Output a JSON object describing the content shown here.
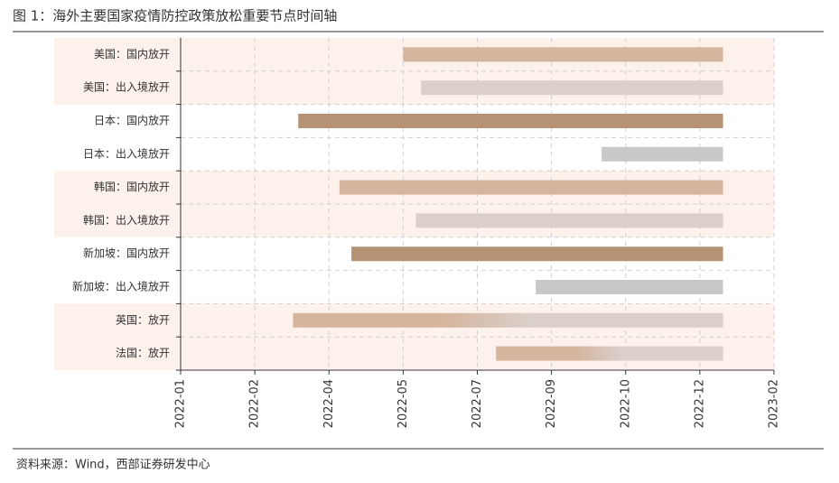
{
  "chart_data": {
    "type": "gantt",
    "title": "图 1：海外主要国家疫情防控政策放松重要节点时间轴",
    "source": "资料来源：Wind，西部证券研发中心",
    "categories": [
      "美国：国内放开",
      "美国：出入境放开",
      "日本：国内放开",
      "日本：出入境放开",
      "韩国：国内放开",
      "韩国：出入境放开",
      "新加坡：国内放开",
      "新加坡：出入境放开",
      "英国：放开",
      "法国：放开"
    ],
    "start": [
      148.5,
      160.5,
      78.5,
      281,
      106,
      157,
      114,
      237,
      75,
      210.5
    ],
    "end": [
      362,
      362,
      362,
      362,
      362,
      362,
      362,
      362,
      362,
      362
    ],
    "colors": [
      [
        "#d5b59d"
      ],
      [
        "#dacfca"
      ],
      [
        "#b69274"
      ],
      [
        "#c8c8c8"
      ],
      [
        "#d5b59d"
      ],
      [
        "#dacfca"
      ],
      [
        "#b69274"
      ],
      [
        "#c8c8c8"
      ],
      [
        "#d5b59d",
        "#dacfca"
      ],
      [
        "#d5b59d",
        "#dacfca"
      ]
    ],
    "shaded_rows": [
      0,
      1,
      4,
      5,
      8,
      9
    ],
    "xlim": [
      0,
      396
    ],
    "xticks": [
      {
        "value": 0,
        "label": "2022-01"
      },
      {
        "value": 49.5,
        "label": "2022-02"
      },
      {
        "value": 99,
        "label": "2022-04"
      },
      {
        "value": 148.5,
        "label": "2022-05"
      },
      {
        "value": 198,
        "label": "2022-07"
      },
      {
        "value": 247.5,
        "label": "2022-09"
      },
      {
        "value": 297,
        "label": "2022-10"
      },
      {
        "value": 346.5,
        "label": "2022-12"
      },
      {
        "value": 396,
        "label": "2023-02"
      }
    ],
    "grid": true
  }
}
